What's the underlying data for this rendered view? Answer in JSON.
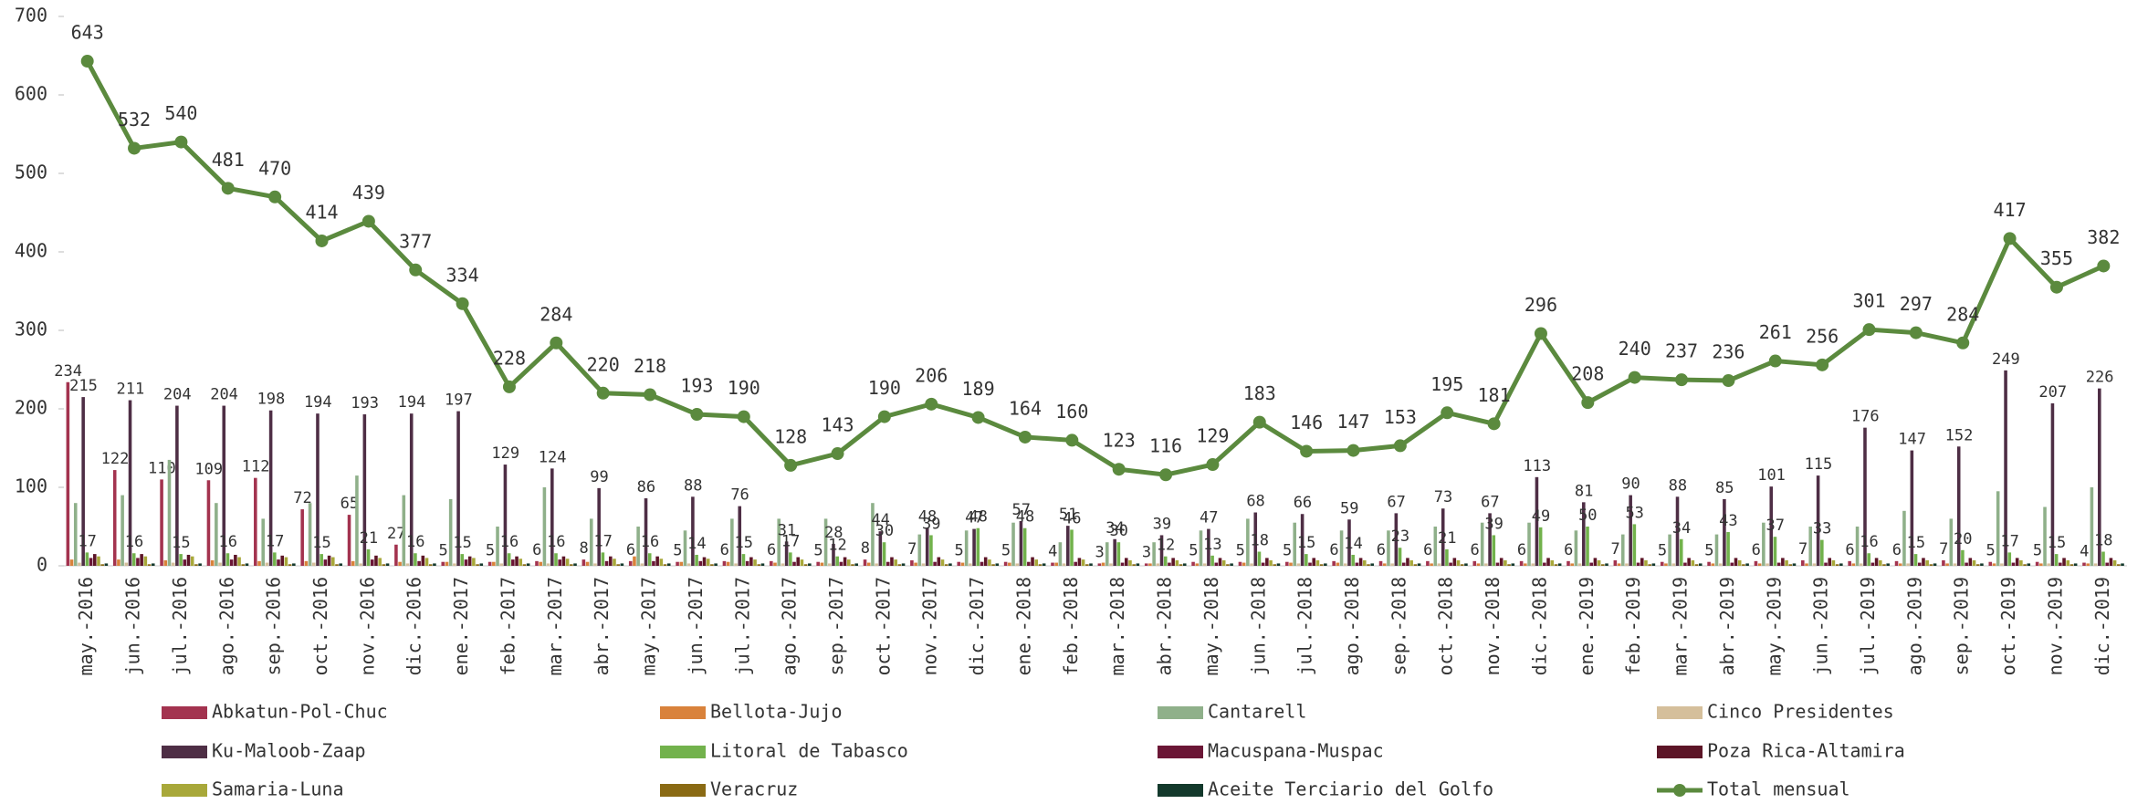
{
  "chart_data": {
    "type": "bar",
    "categories": [
      "may.-2016",
      "jun.-2016",
      "jul.-2016",
      "ago.-2016",
      "sep.-2016",
      "oct.-2016",
      "nov.-2016",
      "dic.-2016",
      "ene.-2017",
      "feb.-2017",
      "mar.-2017",
      "abr.-2017",
      "may.-2017",
      "jun.-2017",
      "jul.-2017",
      "ago.-2017",
      "sep.-2017",
      "oct.-2017",
      "nov.-2017",
      "dic.-2017",
      "ene.-2018",
      "feb.-2018",
      "mar.-2018",
      "abr.-2018",
      "may.-2018",
      "jun.-2018",
      "jul.-2018",
      "ago.-2018",
      "sep.-2018",
      "oct.-2018",
      "nov.-2018",
      "dic.-2018",
      "ene.-2019",
      "feb.-2019",
      "mar.-2019",
      "abr.-2019",
      "may.-2019",
      "jun.-2019",
      "jul.-2019",
      "ago.-2019",
      "sep.-2019",
      "oct.-2019",
      "nov.-2019",
      "dic.-2019"
    ],
    "ylim": [
      0,
      700
    ],
    "yticks": [
      0,
      100,
      200,
      300,
      400,
      500,
      600,
      700
    ],
    "series": [
      {
        "name": "Abkatun-Pol-Chuc",
        "color": "#a3334f",
        "show_labels": true,
        "values": [
          234,
          122,
          110,
          109,
          112,
          72,
          65,
          27,
          5,
          5,
          6,
          8,
          6,
          5,
          6,
          6,
          5,
          8,
          7,
          5,
          5,
          4,
          3,
          3,
          5,
          5,
          5,
          6,
          6,
          6,
          6,
          6,
          6,
          7,
          5,
          5,
          6,
          7,
          6,
          6,
          7,
          5,
          5,
          4
        ]
      },
      {
        "name": "Bellota-Jujo",
        "color": "#d9823b",
        "show_labels": false,
        "values": [
          8,
          8,
          7,
          7,
          6,
          6,
          6,
          5,
          5,
          5,
          5,
          5,
          12,
          5,
          5,
          4,
          4,
          4,
          4,
          4,
          4,
          4,
          4,
          3,
          3,
          4,
          4,
          4,
          3,
          3,
          3,
          3,
          3,
          3,
          3,
          3,
          3,
          3,
          3,
          3,
          3,
          3,
          3,
          3
        ]
      },
      {
        "name": "Cantarell",
        "color": "#8fb08a",
        "show_labels": false,
        "values": [
          80,
          90,
          135,
          80,
          60,
          80,
          115,
          90,
          85,
          50,
          100,
          60,
          50,
          45,
          60,
          60,
          60,
          80,
          40,
          45,
          55,
          30,
          30,
          30,
          45,
          60,
          55,
          45,
          45,
          50,
          55,
          55,
          45,
          40,
          40,
          40,
          55,
          50,
          50,
          70,
          60,
          95,
          75,
          100
        ]
      },
      {
        "name": "Cinco Presidentes",
        "color": "#d5bf9b",
        "show_labels": false,
        "values": [
          4,
          4,
          4,
          4,
          4,
          4,
          3,
          3,
          3,
          3,
          3,
          3,
          3,
          3,
          3,
          3,
          3,
          3,
          3,
          3,
          3,
          3,
          3,
          3,
          3,
          3,
          3,
          3,
          3,
          3,
          3,
          3,
          3,
          3,
          3,
          3,
          3,
          3,
          3,
          3,
          3,
          3,
          3,
          3
        ]
      },
      {
        "name": "Ku-Maloob-Zaap",
        "color": "#4e2e45",
        "show_labels": true,
        "values": [
          215,
          211,
          204,
          204,
          198,
          194,
          193,
          194,
          197,
          129,
          124,
          99,
          86,
          88,
          76,
          31,
          28,
          44,
          48,
          47,
          57,
          51,
          34,
          39,
          47,
          68,
          66,
          59,
          67,
          73,
          67,
          113,
          81,
          90,
          88,
          85,
          101,
          115,
          176,
          147,
          152,
          249,
          207,
          226
        ]
      },
      {
        "name": "Litoral de Tabasco",
        "color": "#72b24c",
        "show_labels": true,
        "values": [
          17,
          16,
          15,
          16,
          17,
          15,
          21,
          16,
          15,
          16,
          16,
          17,
          16,
          14,
          15,
          17,
          12,
          30,
          39,
          48,
          48,
          46,
          30,
          12,
          13,
          18,
          15,
          14,
          23,
          21,
          39,
          49,
          50,
          53,
          34,
          43,
          37,
          33,
          16,
          15,
          20,
          17,
          15,
          18
        ]
      },
      {
        "name": "Macuspana-Muspac",
        "color": "#6b1636",
        "show_labels": false,
        "values": [
          10,
          10,
          8,
          8,
          8,
          8,
          8,
          6,
          8,
          8,
          8,
          6,
          6,
          6,
          6,
          5,
          5,
          5,
          5,
          5,
          5,
          5,
          4,
          4,
          4,
          4,
          4,
          4,
          4,
          4,
          4,
          4,
          4,
          4,
          4,
          4,
          4,
          4,
          4,
          4,
          4,
          4,
          4,
          4
        ]
      },
      {
        "name": "Poza Rica-Altamira",
        "color": "#5c1527",
        "show_labels": false,
        "values": [
          15,
          15,
          14,
          14,
          13,
          13,
          13,
          13,
          12,
          12,
          12,
          12,
          12,
          11,
          11,
          11,
          11,
          11,
          11,
          11,
          11,
          10,
          10,
          10,
          10,
          10,
          10,
          10,
          10,
          10,
          10,
          10,
          10,
          10,
          10,
          10,
          10,
          10,
          10,
          10,
          10,
          10,
          10,
          10
        ]
      },
      {
        "name": "Samaria-Luna",
        "color": "#a8a83a",
        "show_labels": false,
        "values": [
          12,
          12,
          12,
          11,
          11,
          11,
          10,
          10,
          10,
          9,
          9,
          9,
          9,
          9,
          8,
          8,
          8,
          8,
          8,
          8,
          8,
          8,
          7,
          7,
          7,
          7,
          7,
          7,
          7,
          7,
          7,
          7,
          7,
          7,
          7,
          7,
          7,
          7,
          7,
          7,
          7,
          7,
          7,
          7
        ]
      },
      {
        "name": "Veracruz",
        "color": "#8a6a14",
        "show_labels": false,
        "values": [
          2,
          2,
          2,
          2,
          2,
          2,
          2,
          2,
          2,
          2,
          2,
          2,
          2,
          2,
          2,
          2,
          2,
          2,
          2,
          2,
          2,
          2,
          2,
          2,
          2,
          2,
          2,
          2,
          2,
          2,
          2,
          2,
          2,
          2,
          2,
          2,
          2,
          2,
          2,
          2,
          2,
          2,
          2,
          2
        ]
      },
      {
        "name": "Aceite Terciario del Golfo",
        "color": "#13392c",
        "show_labels": false,
        "values": [
          3,
          3,
          3,
          3,
          3,
          3,
          3,
          3,
          3,
          3,
          3,
          3,
          3,
          3,
          3,
          3,
          3,
          3,
          3,
          3,
          3,
          3,
          3,
          3,
          3,
          3,
          3,
          3,
          3,
          3,
          3,
          3,
          3,
          3,
          3,
          3,
          3,
          3,
          3,
          3,
          3,
          3,
          3,
          3
        ]
      },
      {
        "name": "Total mensual",
        "color": "#5b8a3e",
        "type": "line",
        "show_labels": true,
        "values": [
          643,
          532,
          540,
          481,
          470,
          414,
          439,
          377,
          334,
          228,
          284,
          220,
          218,
          193,
          190,
          128,
          143,
          190,
          206,
          189,
          164,
          160,
          123,
          116,
          129,
          183,
          146,
          147,
          153,
          195,
          181,
          296,
          208,
          240,
          237,
          236,
          261,
          256,
          301,
          297,
          284,
          417,
          355,
          382
        ]
      }
    ]
  }
}
